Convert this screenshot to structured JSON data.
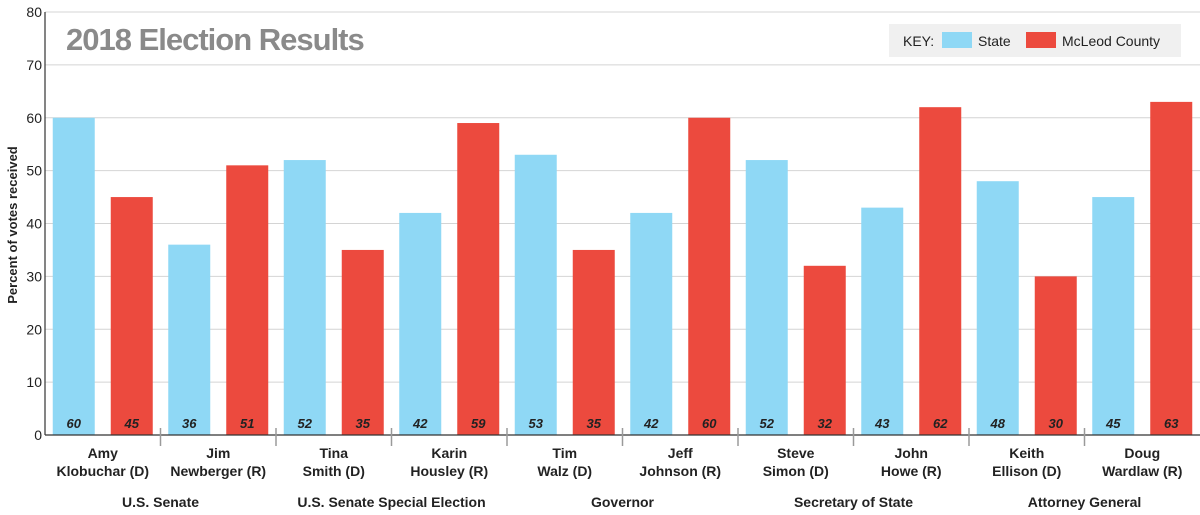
{
  "chart_data": {
    "type": "bar",
    "title": "2018 Election Results",
    "ylabel": "Percent of votes received",
    "xlabel": "",
    "ylim": [
      0,
      80
    ],
    "yticks": [
      0,
      10,
      20,
      30,
      40,
      50,
      60,
      70,
      80
    ],
    "grid": true,
    "legend": {
      "position": "top-right",
      "key_label": "KEY:",
      "entries": [
        "State",
        "McLeod County"
      ]
    },
    "categories": [
      [
        "Amy",
        "Klobuchar (D)"
      ],
      [
        "Jim",
        "Newberger (R)"
      ],
      [
        "Tina",
        "Smith (D)"
      ],
      [
        "Karin",
        "Housley (R)"
      ],
      [
        "Tim",
        "Walz (D)"
      ],
      [
        "Jeff",
        "Johnson (R)"
      ],
      [
        "Steve",
        "Simon (D)"
      ],
      [
        "John",
        "Howe (R)"
      ],
      [
        "Keith",
        "Ellison (D)"
      ],
      [
        "Doug",
        "Wardlaw (R)"
      ]
    ],
    "groups": [
      "U.S. Senate",
      "U.S. Senate Special Election",
      "Governor",
      "Secretary of State",
      "Attorney General"
    ],
    "series": [
      {
        "name": "State",
        "color": "#8fd8f5",
        "values": [
          60,
          36,
          52,
          42,
          53,
          42,
          52,
          43,
          48,
          45
        ]
      },
      {
        "name": "McLeod County",
        "color": "#ec4a3e",
        "values": [
          45,
          51,
          35,
          59,
          35,
          60,
          32,
          62,
          30,
          63
        ]
      }
    ],
    "colors": {
      "title": "#8a8a8a",
      "grid": "#d4d4d4",
      "axis": "#333333",
      "legend_bg": "#f0f0f0",
      "separator": "#9a9a9a"
    }
  }
}
